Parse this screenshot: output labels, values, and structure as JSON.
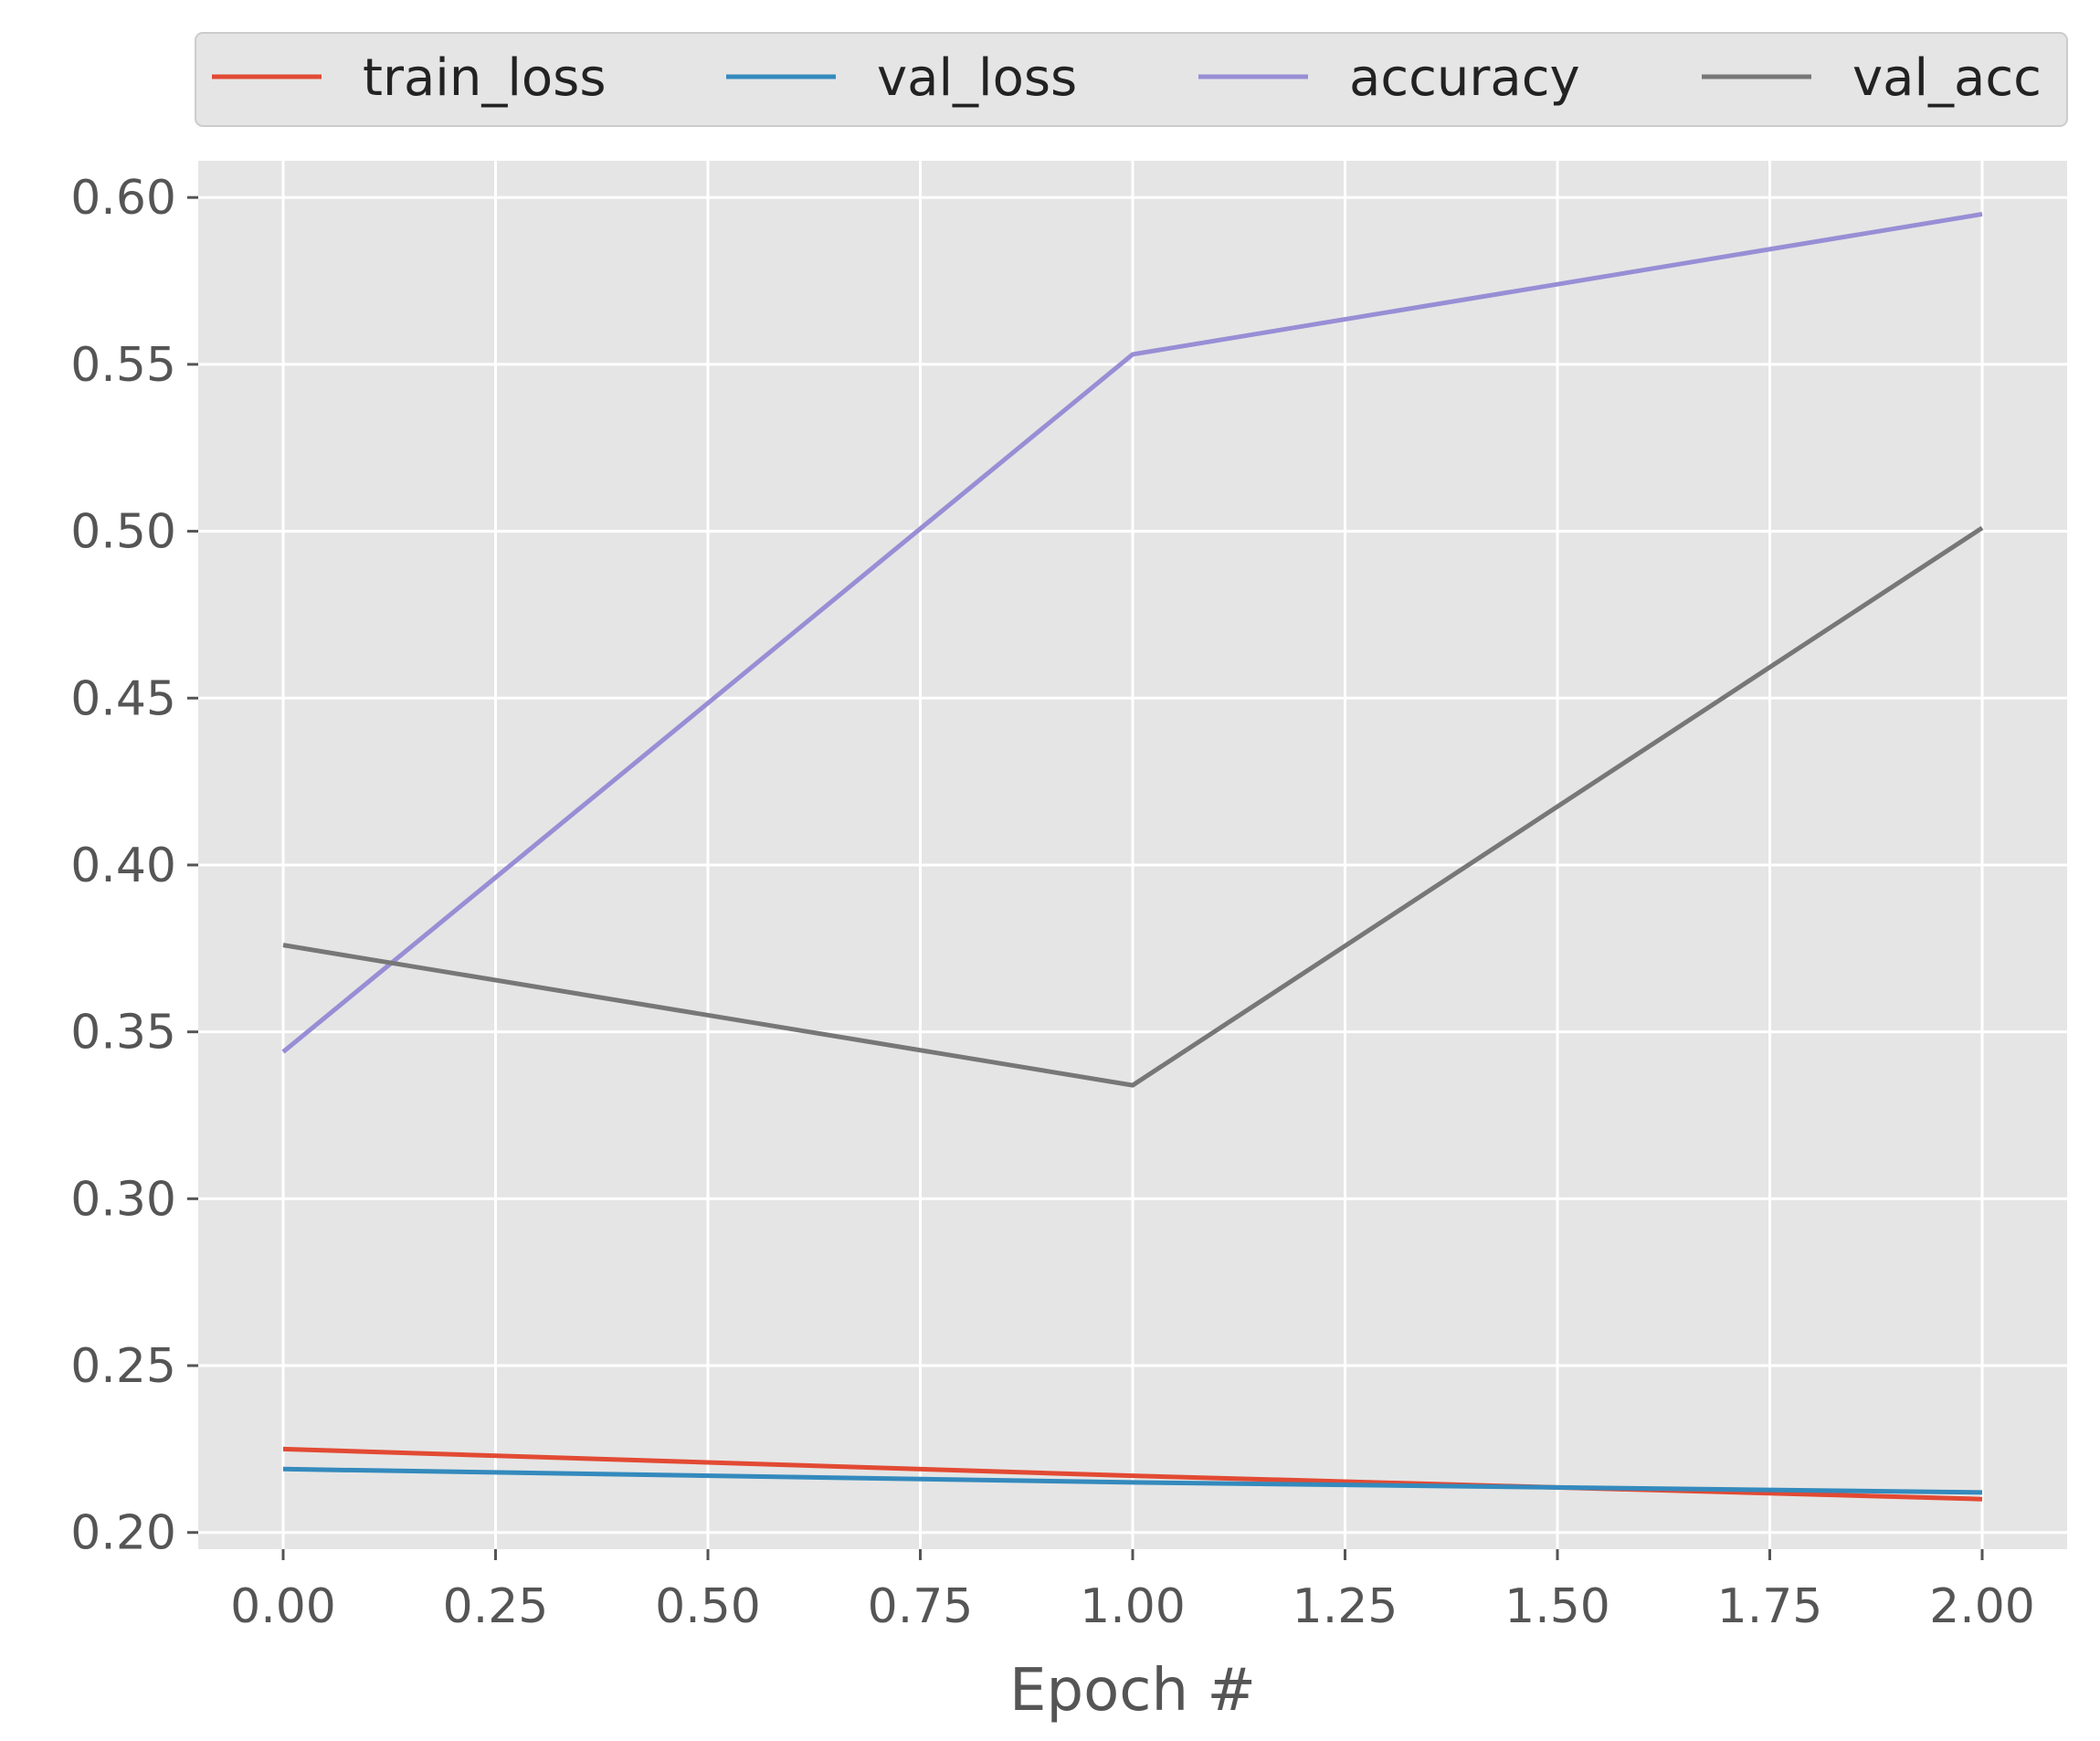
{
  "chart_data": {
    "type": "line",
    "title": "",
    "xlabel": "Epoch #",
    "ylabel": "",
    "xlim": [
      -0.1,
      2.1
    ],
    "ylim": [
      0.195,
      0.611
    ],
    "xticks": [
      0.0,
      0.25,
      0.5,
      0.75,
      1.0,
      1.25,
      1.5,
      1.75,
      2.0
    ],
    "xtick_labels": [
      "0.00",
      "0.25",
      "0.50",
      "0.75",
      "1.00",
      "1.25",
      "1.50",
      "1.75",
      "2.00"
    ],
    "yticks": [
      0.2,
      0.25,
      0.3,
      0.35,
      0.4,
      0.45,
      0.5,
      0.55,
      0.6
    ],
    "ytick_labels": [
      "0.20",
      "0.25",
      "0.30",
      "0.35",
      "0.40",
      "0.45",
      "0.50",
      "0.55",
      "0.60"
    ],
    "grid": true,
    "legend_position": "top, outside plot, single row",
    "background_color": "#e5e5e5",
    "x": [
      0,
      1,
      2
    ],
    "series": [
      {
        "name": "train_loss",
        "color": "#e24a33",
        "values": [
          0.225,
          0.217,
          0.21
        ]
      },
      {
        "name": "val_loss",
        "color": "#348abd",
        "values": [
          0.219,
          0.215,
          0.212
        ]
      },
      {
        "name": "accuracy",
        "color": "#988ed5",
        "values": [
          0.344,
          0.553,
          0.595
        ]
      },
      {
        "name": "val_acc",
        "color": "#777777",
        "values": [
          0.376,
          0.334,
          0.501
        ]
      }
    ]
  }
}
